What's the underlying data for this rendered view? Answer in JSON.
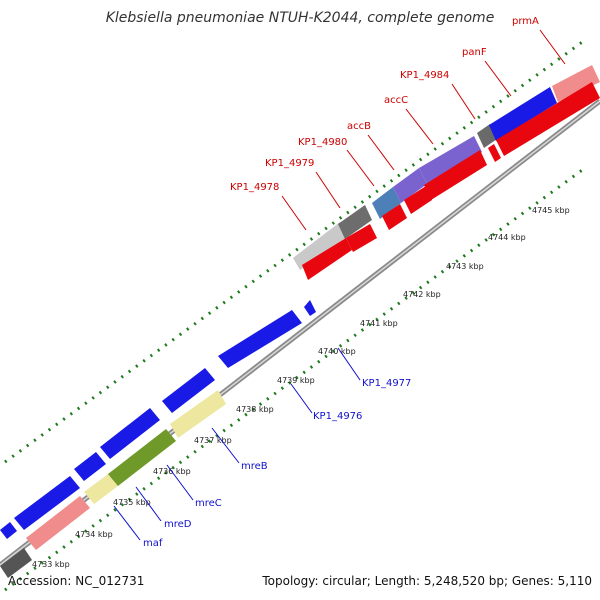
{
  "title": "Klebsiella pneumoniae NTUH-K2044, complete genome",
  "accession": "Accession: NC_012731",
  "topology": "Topology: circular; Length: 5,248,520 bp; Genes: 5,110",
  "colors": {
    "forward_gene": "#e8070f",
    "reverse_gene": "#1010e0",
    "backbone": "#909090",
    "ticks": "#1e7a1e",
    "forward_label": "#cc0000",
    "reverse_label": "#1010cc"
  },
  "scale_labels": [
    "4733 kbp",
    "4734 kbp",
    "4735 kbp",
    "4736 kbp",
    "4737 kbp",
    "4738 kbp",
    "4739 kbp",
    "4740 kbp",
    "4741 kbp",
    "4742 kbp",
    "4743 kbp",
    "4744 kbp",
    "4745 kbp"
  ],
  "forward_labels": [
    "KP1_4978",
    "KP1_4979",
    "KP1_4980",
    "accB",
    "accC",
    "KP1_4984",
    "panF",
    "prmA"
  ],
  "reverse_labels": [
    "KP1_4977",
    "KP1_4976",
    "mreB",
    "mreC",
    "mreD",
    "maf"
  ]
}
